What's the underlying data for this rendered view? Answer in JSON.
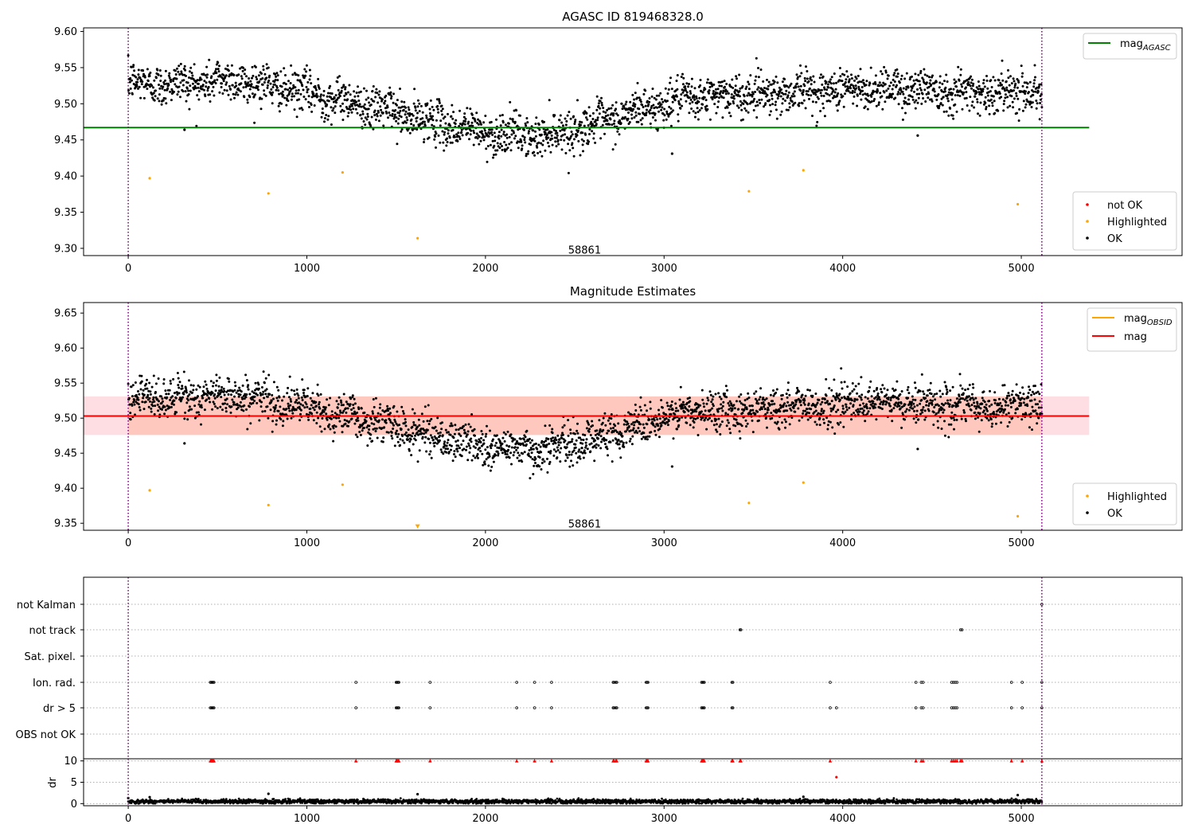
{
  "chart_data": [
    {
      "type": "scatter",
      "title": "AGASC ID 819468328.0",
      "xlim": [
        -250,
        5900
      ],
      "ylim": [
        9.29,
        9.605
      ],
      "xticks": [
        0,
        1000,
        2000,
        3000,
        4000,
        5000
      ],
      "yticks": [
        9.3,
        9.35,
        9.4,
        9.45,
        9.5,
        9.55,
        9.6
      ],
      "obsid_label": {
        "text": "58861",
        "x": 2555,
        "y": 9.293
      },
      "vlines": [
        0,
        5115
      ],
      "hline": {
        "name": "mag_AGASC",
        "value": 9.467,
        "x_range": [
          -250,
          5380
        ],
        "color": "#008000"
      },
      "legend_lines": [
        {
          "base": "mag",
          "sub": "AGASC",
          "color": "#008000"
        }
      ],
      "legend_points": [
        {
          "name": "not OK",
          "color": "#ff0000"
        },
        {
          "name": "Highlighted",
          "color": "#ffa500"
        },
        {
          "name": "OK",
          "color": "#000000"
        }
      ],
      "legend_lines_placement": "top-right",
      "legend_points_placement": "bottom-right",
      "series": [
        {
          "name": "OK",
          "color": "#000000",
          "trend": {
            "x": [
              0,
              300,
              600,
              900,
              1300,
              1700,
              2000,
              2300,
              2600,
              2900,
              3200,
              3600,
              4000,
              4400,
              4800,
              5115
            ],
            "y": [
              9.528,
              9.528,
              9.533,
              9.52,
              9.5,
              9.475,
              9.46,
              9.455,
              9.47,
              9.495,
              9.51,
              9.515,
              9.52,
              9.522,
              9.515,
              9.52
            ]
          },
          "scatter": 0.014,
          "count": 2600
        },
        {
          "name": "OK outliers",
          "color": "#000000",
          "x": [
            315,
            3045,
            4420
          ],
          "y": [
            9.464,
            9.431,
            9.456
          ]
        },
        {
          "name": "Highlighted",
          "color": "#ffa500",
          "x": [
            120,
            785,
            1200,
            1620,
            3475,
            3780,
            4980
          ],
          "y": [
            9.397,
            9.376,
            9.405,
            9.314,
            9.379,
            9.408,
            9.361
          ]
        }
      ]
    },
    {
      "type": "scatter",
      "title": "Magnitude Estimates",
      "xlim": [
        -250,
        5900
      ],
      "ylim": [
        9.34,
        9.665
      ],
      "xticks": [
        0,
        1000,
        2000,
        3000,
        4000,
        5000
      ],
      "yticks": [
        9.35,
        9.4,
        9.45,
        9.5,
        9.55,
        9.6,
        9.65
      ],
      "obsid_label": {
        "text": "58861",
        "x": 2555,
        "y": 9.344
      },
      "vlines": [
        0,
        5115
      ],
      "band": {
        "y_range": [
          9.476,
          9.531
        ],
        "x_range": [
          -250,
          5380
        ],
        "color": "#ffb6c1"
      },
      "band_obsid": {
        "y_range": [
          9.476,
          9.531
        ],
        "x_range": [
          0,
          5115
        ],
        "color": "#ffa07a"
      },
      "hline": {
        "name": "mag",
        "value": 9.503,
        "x_range": [
          -250,
          5380
        ],
        "color": "#ff0000"
      },
      "hline_obsid": {
        "value": 9.503,
        "x_range": [
          0,
          5115
        ],
        "color": "#ffa500"
      },
      "legend_lines": [
        {
          "base": "mag",
          "sub": "OBSID",
          "color": "#ffa500"
        },
        {
          "base": "mag",
          "sub": "",
          "color": "#ff0000"
        }
      ],
      "legend_points": [
        {
          "name": "Highlighted",
          "color": "#ffa500"
        },
        {
          "name": "OK",
          "color": "#000000"
        }
      ],
      "legend_lines_placement": "top-right",
      "legend_points_placement": "bottom-right",
      "series": [
        {
          "name": "OK",
          "color": "#000000",
          "trend": {
            "x": [
              0,
              300,
              600,
              900,
              1300,
              1700,
              2000,
              2300,
              2600,
              2900,
              3200,
              3600,
              4000,
              4400,
              4800,
              5115
            ],
            "y": [
              9.528,
              9.528,
              9.533,
              9.52,
              9.5,
              9.475,
              9.46,
              9.455,
              9.47,
              9.495,
              9.51,
              9.515,
              9.52,
              9.522,
              9.515,
              9.52
            ]
          },
          "scatter": 0.014,
          "count": 2600
        },
        {
          "name": "OK outliers",
          "color": "#000000",
          "x": [
            315,
            3045,
            4420
          ],
          "y": [
            9.464,
            9.431,
            9.456
          ]
        },
        {
          "name": "Highlighted",
          "color": "#ffa500",
          "x": [
            120,
            785,
            1200,
            3475,
            3780,
            4980
          ],
          "y": [
            9.397,
            9.376,
            9.405,
            9.379,
            9.408,
            9.36
          ]
        },
        {
          "name": "Highlighted (below range)",
          "color": "#ffa500",
          "x": [
            1620
          ],
          "y": [
            9.345
          ],
          "marker": "triangle-down"
        }
      ]
    },
    {
      "type": "scatter",
      "title": "",
      "xlim": [
        -250,
        5900
      ],
      "vlines": [
        0,
        5115
      ],
      "flag_rows": [
        "not Kalman",
        "not track",
        "Sat. pixel.",
        "Ion. rad.",
        "dr > 5",
        "OBS not OK"
      ],
      "flags": {
        "not Kalman": [
          5115
        ],
        "not track": [
          3425,
          3430,
          4660,
          4668
        ],
        "Sat. pixel.": [],
        "Ion. rad.": [
          460,
          465,
          470,
          475,
          480,
          1275,
          1500,
          1505,
          1510,
          1515,
          1690,
          2175,
          2275,
          2370,
          2715,
          2720,
          2730,
          2735,
          2900,
          2905,
          2910,
          3210,
          3215,
          3220,
          3225,
          3380,
          3385,
          3930,
          4410,
          4440,
          4450,
          4610,
          4620,
          4630,
          4640,
          4945,
          5005,
          5115
        ],
        "dr > 5": [
          460,
          465,
          470,
          475,
          480,
          1275,
          1500,
          1505,
          1510,
          1515,
          1690,
          2175,
          2275,
          2370,
          2715,
          2720,
          2730,
          2735,
          2900,
          2905,
          2910,
          3210,
          3215,
          3220,
          3225,
          3380,
          3385,
          3930,
          3965,
          4410,
          4440,
          4450,
          4610,
          4620,
          4630,
          4640,
          4945,
          5005,
          5115
        ],
        "OBS not OK": []
      }
    },
    {
      "type": "scatter",
      "ylabel": "dr",
      "xlim": [
        -250,
        5900
      ],
      "ylim": [
        -0.5,
        10.5
      ],
      "xticks": [
        0,
        1000,
        2000,
        3000,
        4000,
        5000
      ],
      "yticks": [
        0,
        5,
        10
      ],
      "vlines": [
        0,
        5115
      ],
      "series": [
        {
          "name": "dr",
          "color": "#000000",
          "baseline": 0.5,
          "scatter": 0.25,
          "count": 2600
        },
        {
          "name": "dr spikes",
          "color": "#000000",
          "x": [
            0,
            120,
            785,
            1620,
            3780,
            4980
          ],
          "y": [
            1.3,
            1.5,
            2.3,
            2.2,
            1.6,
            2.0
          ]
        },
        {
          "name": "dr clipped",
          "color": "#ff0000",
          "x": [
            460,
            465,
            470,
            475,
            480,
            1275,
            1500,
            1505,
            1510,
            1515,
            1690,
            2175,
            2275,
            2370,
            2715,
            2720,
            2730,
            2735,
            2900,
            2905,
            2910,
            3210,
            3215,
            3220,
            3225,
            3380,
            3385,
            3425,
            3430,
            3930,
            4410,
            4440,
            4450,
            4610,
            4620,
            4630,
            4640,
            4660,
            4668,
            4945,
            5005,
            5115
          ],
          "y": 10,
          "marker": "triangle-up"
        },
        {
          "name": "dr high",
          "color": "#ff0000",
          "x": [
            3965
          ],
          "y": [
            6.2
          ]
        }
      ]
    }
  ]
}
